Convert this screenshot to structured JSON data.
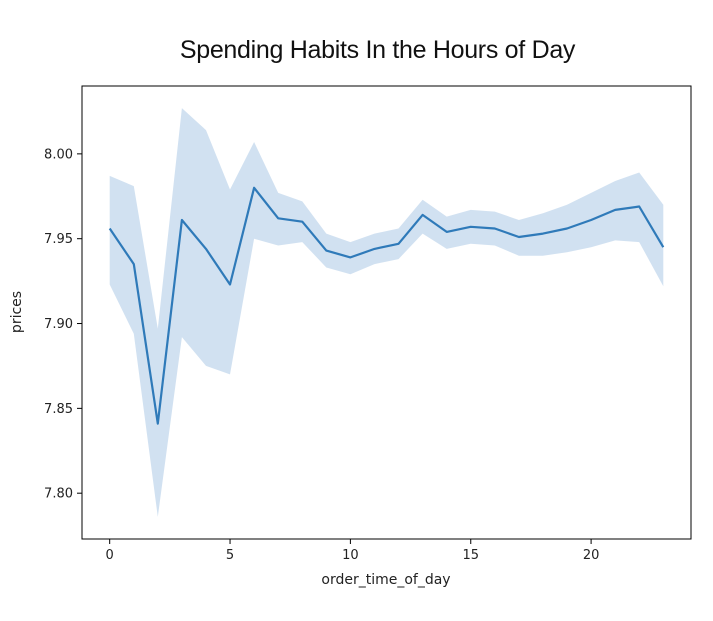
{
  "chart_data": {
    "type": "line",
    "title": "Spending Habits In the Hours of Day",
    "xlabel": "order_time_of_day",
    "ylabel": "prices",
    "xlim": [
      -1.15,
      24.15
    ],
    "ylim": [
      7.773,
      8.04
    ],
    "xticks": [
      0,
      5,
      10,
      15,
      20
    ],
    "xtick_labels": [
      "0",
      "5",
      "10",
      "15",
      "20"
    ],
    "yticks": [
      7.8,
      7.85,
      7.9,
      7.95,
      8.0
    ],
    "ytick_labels": [
      "7.80",
      "7.85",
      "7.90",
      "7.95",
      "8.00"
    ],
    "grid": false,
    "series": [
      {
        "x": [
          0,
          1,
          2,
          3,
          4,
          5,
          6,
          7,
          8,
          9,
          10,
          11,
          12,
          13,
          14,
          15,
          16,
          17,
          18,
          19,
          20,
          21,
          22,
          23
        ],
        "values": [
          7.956,
          7.935,
          7.841,
          7.961,
          7.944,
          7.923,
          7.98,
          7.962,
          7.96,
          7.943,
          7.939,
          7.944,
          7.947,
          7.964,
          7.954,
          7.957,
          7.956,
          7.951,
          7.953,
          7.956,
          7.961,
          7.967,
          7.969,
          7.945
        ],
        "lower": [
          7.923,
          7.894,
          7.786,
          7.892,
          7.875,
          7.87,
          7.95,
          7.946,
          7.948,
          7.933,
          7.929,
          7.935,
          7.938,
          7.953,
          7.944,
          7.947,
          7.946,
          7.94,
          7.94,
          7.942,
          7.945,
          7.949,
          7.948,
          7.922
        ],
        "upper": [
          7.987,
          7.981,
          7.897,
          8.027,
          8.014,
          7.979,
          8.007,
          7.977,
          7.972,
          7.953,
          7.948,
          7.953,
          7.956,
          7.973,
          7.963,
          7.967,
          7.966,
          7.961,
          7.965,
          7.97,
          7.977,
          7.984,
          7.989,
          7.97
        ]
      }
    ],
    "colors": {
      "line": "#2f7ab9",
      "band": "#c9dcee",
      "axes": "#000000"
    }
  }
}
